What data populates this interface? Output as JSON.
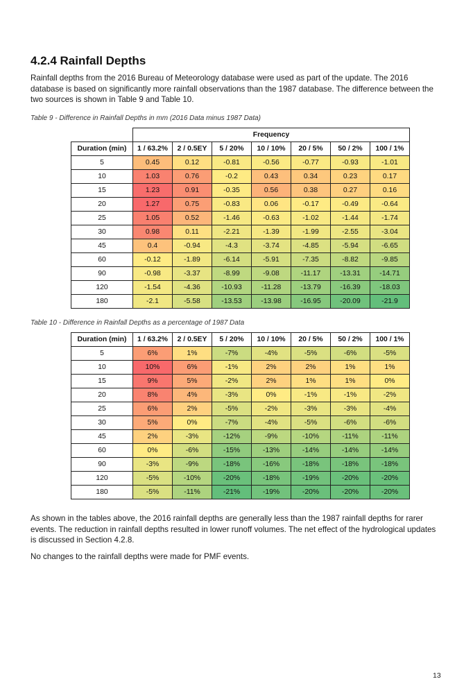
{
  "section_title": "4.2.4 Rainfall Depths",
  "intro": "Rainfall depths from the 2016 Bureau of Meteorology database were used as part of the update. The 2016 database is based on significantly more rainfall observations than the 1987 database. The difference between the two sources is shown in Table 9 and Table 10.",
  "table9": {
    "caption": "Table 9 - Difference in Rainfall Depths in mm (2016 Data minus 1987 Data)",
    "group_header": "Frequency",
    "headers": [
      "Duration (min)",
      "1 / 63.2%",
      "2 / 0.5EY",
      "5 / 20%",
      "10 / 10%",
      "20 / 5%",
      "50 / 2%",
      "100 / 1%"
    ],
    "rows": [
      [
        "5",
        "0.45",
        "0.12",
        "-0.81",
        "-0.56",
        "-0.77",
        "-0.93",
        "-1.01"
      ],
      [
        "10",
        "1.03",
        "0.76",
        "-0.2",
        "0.43",
        "0.34",
        "0.23",
        "0.17"
      ],
      [
        "15",
        "1.23",
        "0.91",
        "-0.35",
        "0.56",
        "0.38",
        "0.27",
        "0.16"
      ],
      [
        "20",
        "1.27",
        "0.75",
        "-0.83",
        "0.06",
        "-0.17",
        "-0.49",
        "-0.64"
      ],
      [
        "25",
        "1.05",
        "0.52",
        "-1.46",
        "-0.63",
        "-1.02",
        "-1.44",
        "-1.74"
      ],
      [
        "30",
        "0.98",
        "0.11",
        "-2.21",
        "-1.39",
        "-1.99",
        "-2.55",
        "-3.04"
      ],
      [
        "45",
        "0.4",
        "-0.94",
        "-4.3",
        "-3.74",
        "-4.85",
        "-5.94",
        "-6.65"
      ],
      [
        "60",
        "-0.12",
        "-1.89",
        "-6.14",
        "-5.91",
        "-7.35",
        "-8.82",
        "-9.85"
      ],
      [
        "90",
        "-0.98",
        "-3.37",
        "-8.99",
        "-9.08",
        "-11.17",
        "-13.31",
        "-14.71"
      ],
      [
        "120",
        "-1.54",
        "-4.36",
        "-10.93",
        "-11.28",
        "-13.79",
        "-16.39",
        "-18.03"
      ],
      [
        "180",
        "-2.1",
        "-5.58",
        "-13.53",
        "-13.98",
        "-16.95",
        "-20.09",
        "-21.9"
      ]
    ]
  },
  "table10": {
    "caption": "Table 10 - Difference in Rainfall Depths as a percentage of 1987 Data",
    "headers": [
      "Duration (min)",
      "1 / 63.2%",
      "2 / 0.5EY",
      "5 / 20%",
      "10 / 10%",
      "20 / 5%",
      "50 / 2%",
      "100 / 1%"
    ],
    "rows": [
      [
        "5",
        "6%",
        "1%",
        "-7%",
        "-4%",
        "-5%",
        "-6%",
        "-5%"
      ],
      [
        "10",
        "10%",
        "6%",
        "-1%",
        "2%",
        "2%",
        "1%",
        "1%"
      ],
      [
        "15",
        "9%",
        "5%",
        "-2%",
        "2%",
        "1%",
        "1%",
        "0%"
      ],
      [
        "20",
        "8%",
        "4%",
        "-3%",
        "0%",
        "-1%",
        "-1%",
        "-2%"
      ],
      [
        "25",
        "6%",
        "2%",
        "-5%",
        "-2%",
        "-3%",
        "-3%",
        "-4%"
      ],
      [
        "30",
        "5%",
        "0%",
        "-7%",
        "-4%",
        "-5%",
        "-6%",
        "-6%"
      ],
      [
        "45",
        "2%",
        "-3%",
        "-12%",
        "-9%",
        "-10%",
        "-11%",
        "-11%"
      ],
      [
        "60",
        "0%",
        "-6%",
        "-15%",
        "-13%",
        "-14%",
        "-14%",
        "-14%"
      ],
      [
        "90",
        "-3%",
        "-9%",
        "-18%",
        "-16%",
        "-18%",
        "-18%",
        "-18%"
      ],
      [
        "120",
        "-5%",
        "-10%",
        "-20%",
        "-18%",
        "-19%",
        "-20%",
        "-20%"
      ],
      [
        "180",
        "-5%",
        "-11%",
        "-21%",
        "-19%",
        "-20%",
        "-20%",
        "-20%"
      ]
    ]
  },
  "outro1": "As shown in the tables above, the 2016 rainfall depths are generally less than the 1987 rainfall depths for rarer events. The reduction in rainfall depths resulted in lower runoff volumes. The net effect of the hydrological updates is discussed in Section 4.2.8.",
  "outro2": "No changes to the rainfall depths were made for PMF events.",
  "page_number": "13",
  "colors": {
    "heat_max": "#f8696b",
    "heat_mid": "#ffeb84",
    "heat_min": "#63be7b"
  }
}
